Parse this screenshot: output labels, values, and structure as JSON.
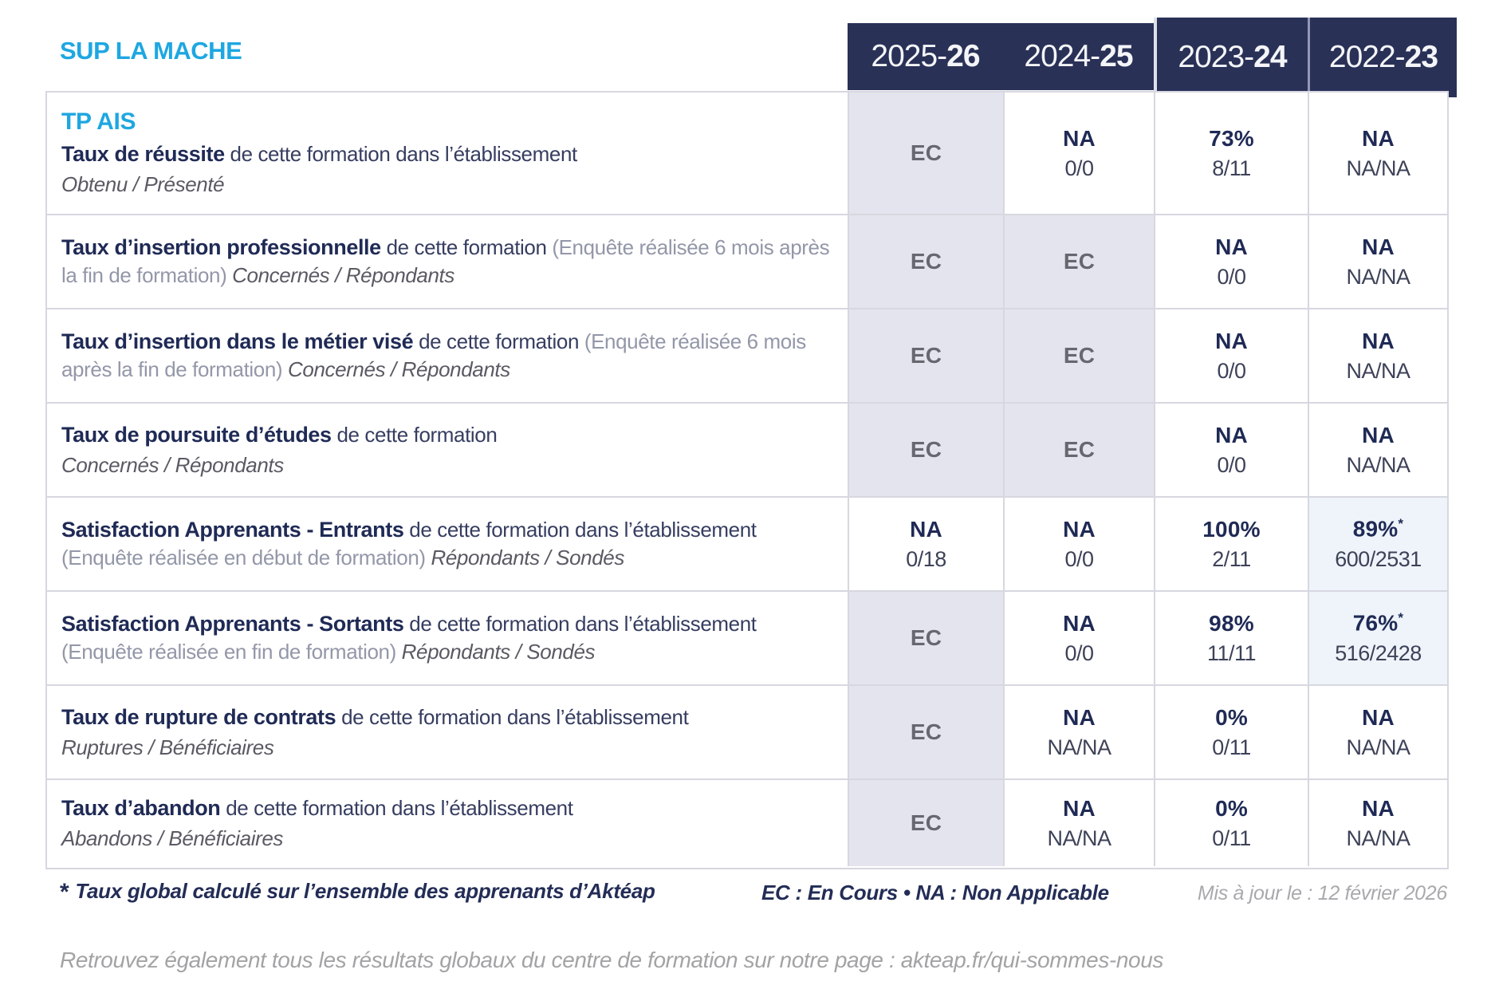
{
  "brand": {
    "title": "SUP LA MACHE"
  },
  "program": {
    "code": "TP AIS"
  },
  "header": {
    "years": [
      {
        "prefix": "2025-",
        "bold": "26"
      },
      {
        "prefix": "2024-",
        "bold": "25"
      },
      {
        "prefix": "2023-",
        "bold": "24"
      },
      {
        "prefix": "2022-",
        "bold": "23"
      }
    ]
  },
  "rows": [
    {
      "title": "Taux de réussite",
      "text": " de cette formation dans l’établissement",
      "paren": "",
      "sub_inline": "",
      "sub_block": "Obtenu / Présenté",
      "cells": [
        {
          "main": "EC"
        },
        {
          "main": "NA",
          "sub": "0/0"
        },
        {
          "main": "73%",
          "sub": "8/11"
        },
        {
          "main": "NA",
          "sub": "NA/NA"
        }
      ]
    },
    {
      "title": "Taux d’insertion professionnelle",
      "text": " de cette formation ",
      "paren": "(Enquête réalisée 6 mois après la fin de formation)",
      "sub_inline": " Concernés / Répondants",
      "sub_block": "",
      "cells": [
        {
          "main": "EC"
        },
        {
          "main": "EC"
        },
        {
          "main": "NA",
          "sub": "0/0"
        },
        {
          "main": "NA",
          "sub": "NA/NA"
        }
      ]
    },
    {
      "title": "Taux d’insertion dans le métier visé",
      "text": " de cette formation ",
      "paren": "(Enquête réalisée 6 mois après la fin de formation)",
      "sub_inline": " Concernés / Répondants",
      "sub_block": "",
      "cells": [
        {
          "main": "EC"
        },
        {
          "main": "EC"
        },
        {
          "main": "NA",
          "sub": "0/0"
        },
        {
          "main": "NA",
          "sub": "NA/NA"
        }
      ]
    },
    {
      "title": "Taux de poursuite d’études",
      "text": " de cette formation",
      "paren": "",
      "sub_inline": "",
      "sub_block": "Concernés / Répondants",
      "cells": [
        {
          "main": "EC"
        },
        {
          "main": "EC"
        },
        {
          "main": "NA",
          "sub": "0/0"
        },
        {
          "main": "NA",
          "sub": "NA/NA"
        }
      ]
    },
    {
      "title": "Satisfaction Apprenants - Entrants",
      "text": " de cette formation dans l’établissement ",
      "paren": "(Enquête réalisée en début de formation)",
      "sub_inline": " Répondants / Sondés",
      "sub_block": "",
      "cells": [
        {
          "main": "NA",
          "sub": "0/18"
        },
        {
          "main": "NA",
          "sub": "0/0"
        },
        {
          "main": "100%",
          "sub": "2/11"
        },
        {
          "main": "89%",
          "star": "*",
          "sub": "600/2531"
        }
      ]
    },
    {
      "title": "Satisfaction Apprenants - Sortants",
      "text": " de cette formation dans l’établissement ",
      "paren": "(Enquête réalisée en fin de formation)",
      "sub_inline": " Répondants / Sondés",
      "sub_block": "",
      "cells": [
        {
          "main": "EC"
        },
        {
          "main": "NA",
          "sub": "0/0"
        },
        {
          "main": "98%",
          "sub": "11/11"
        },
        {
          "main": "76%",
          "star": "*",
          "sub": "516/2428"
        }
      ]
    },
    {
      "title": "Taux de rupture de contrats",
      "text": " de cette formation dans l’établissement",
      "paren": "",
      "sub_inline": "",
      "sub_block": "Ruptures / Bénéficiaires",
      "cells": [
        {
          "main": "EC"
        },
        {
          "main": "NA",
          "sub": "NA/NA"
        },
        {
          "main": "0%",
          "sub": "0/11"
        },
        {
          "main": "NA",
          "sub": "NA/NA"
        }
      ]
    },
    {
      "title": "Taux d’abandon",
      "text": " de cette formation dans l’établissement",
      "paren": "",
      "sub_inline": "",
      "sub_block": "Abandons / Bénéficiaires",
      "cells": [
        {
          "main": "EC"
        },
        {
          "main": "NA",
          "sub": "NA/NA"
        },
        {
          "main": "0%",
          "sub": "0/11"
        },
        {
          "main": "NA",
          "sub": "NA/NA"
        }
      ]
    }
  ],
  "footer": {
    "star": "*",
    "footnote": "Taux global calculé sur l’ensemble des apprenants d’Aktéap",
    "legend": "EC : En Cours  •  NA : Non Applicable",
    "updated": "Mis à jour le : 12 février 2026",
    "bottom_note": "Retrouvez également tous les résultats globaux du centre de formation sur notre page : akteap.fr/qui-sommes-nous"
  },
  "colors": {
    "brand_blue": "#1ea7e1",
    "header_navy": "#2a3157",
    "title_navy": "#1f2a55",
    "cell_lavender": "#e4e4ee",
    "cell_pale_blue": "#eef4fa",
    "grid_border": "#d7d7e0",
    "muted_gray": "#9397a8"
  }
}
